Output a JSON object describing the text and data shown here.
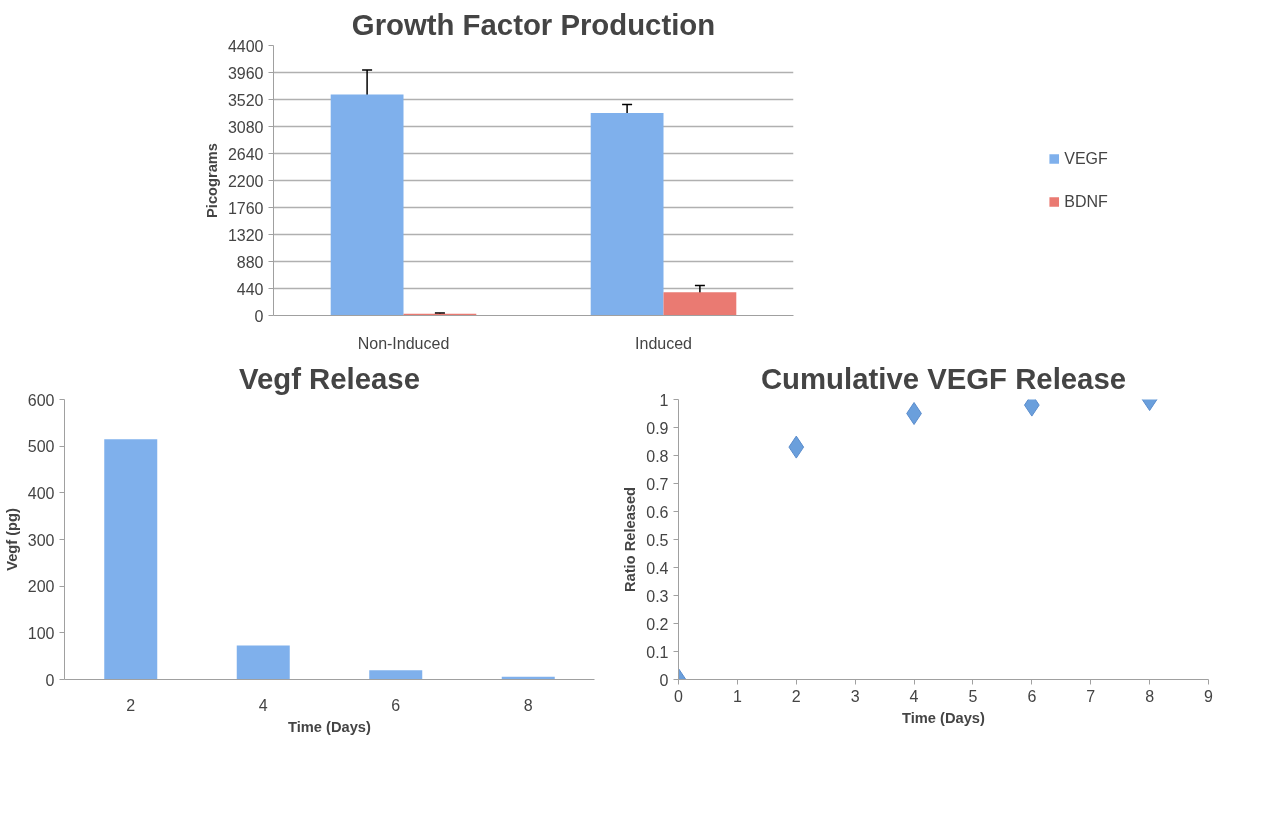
{
  "chart_data": [
    {
      "type": "bar",
      "title": "Growth Factor Production",
      "ylabel": "Picograms",
      "categories": [
        "Non-Induced",
        "Induced"
      ],
      "series": [
        {
          "name": "VEGF",
          "color": "#7fb0ec",
          "values": [
            3600,
            3300
          ],
          "errors": [
            400,
            140
          ]
        },
        {
          "name": "BDNF",
          "color": "#ea7a72",
          "values": [
            30,
            380
          ],
          "errors": [
            10,
            110
          ]
        }
      ],
      "ylim": [
        0,
        4400
      ],
      "yticks": [
        0,
        440,
        880,
        1320,
        1760,
        2200,
        2640,
        3080,
        3520,
        3960,
        4400
      ],
      "grid": "y",
      "legend": "right"
    },
    {
      "type": "bar",
      "title": "Vegf Release",
      "xlabel": "Time (Days)",
      "ylabel": "Vegf (pg)",
      "categories": [
        "2",
        "4",
        "6",
        "8"
      ],
      "series": [
        {
          "color": "#7fb0ec",
          "values": [
            515,
            73,
            20,
            6
          ]
        }
      ],
      "ylim": [
        0,
        600
      ],
      "yticks": [
        0,
        100,
        200,
        300,
        400,
        500,
        600
      ]
    },
    {
      "type": "scatter",
      "title": "Cumulative VEGF Release",
      "xlabel": "Time (Days)",
      "ylabel": "Ratio Released",
      "marker": "diamond",
      "series": [
        {
          "color": "#6a9fdc",
          "x": [
            0,
            2,
            4,
            6,
            8
          ],
          "values": [
            0,
            0.83,
            0.95,
            0.98,
            1.0
          ]
        }
      ],
      "xlim": [
        0,
        9
      ],
      "xticks": [
        0,
        1,
        2,
        3,
        4,
        5,
        6,
        7,
        8,
        9
      ],
      "ylim": [
        0,
        1
      ],
      "yticks": [
        0,
        0.1,
        0.2,
        0.3,
        0.4,
        0.5,
        0.6,
        0.7,
        0.8,
        0.9,
        1
      ]
    }
  ]
}
